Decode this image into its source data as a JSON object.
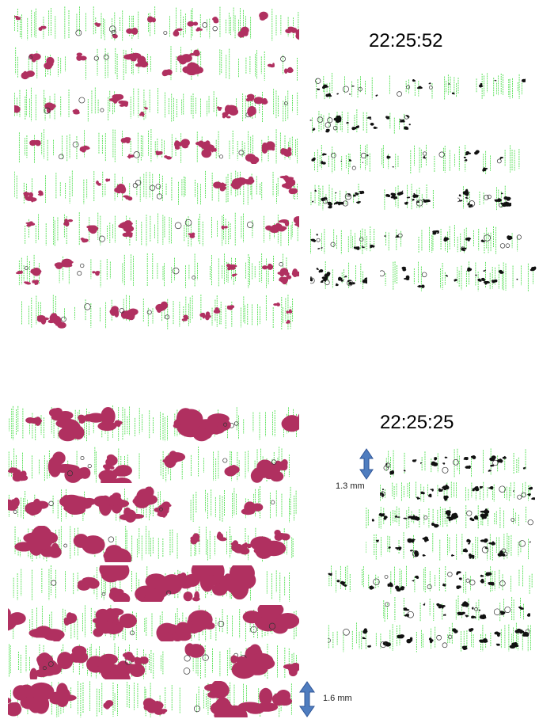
{
  "panels": [
    {
      "timestamp": "22:25:52"
    },
    {
      "timestamp": "22:25:25",
      "scales": [
        "1.3 mm",
        "1.6 mm"
      ]
    }
  ],
  "colors": {
    "track": "#3ddc3d",
    "particle_large": "#b03060",
    "particle_small": "#111111"
  }
}
